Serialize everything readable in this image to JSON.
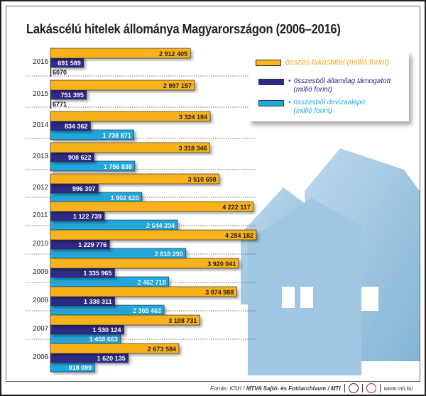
{
  "title": "Lakáscélú hitelek állománya Magyarországon (2006–2016)",
  "chart_data": {
    "type": "bar",
    "orientation": "horizontal",
    "categories": [
      "2016",
      "2015",
      "2014",
      "2013",
      "2012",
      "2011",
      "2010",
      "2009",
      "2008",
      "2007",
      "2006"
    ],
    "series": [
      {
        "name": "összes lakáshitel (millió forint)",
        "color": "#f9b21b",
        "values": [
          2912405,
          2997157,
          3324184,
          3318346,
          3510698,
          4222117,
          4284182,
          3920041,
          3874988,
          3108731,
          2673584
        ],
        "labels": [
          "2 912 405",
          "2 997 157",
          "3 324 184",
          "3 318 346",
          "3 510 698",
          "4 222 117",
          "4 284 182",
          "3 920 041",
          "3 874 988",
          "3 108 731",
          "2 673 584"
        ]
      },
      {
        "name": "összesből államilag támogatott (millió forint)",
        "color": "#2e2a86",
        "values": [
          691589,
          751395,
          834362,
          908622,
          996307,
          1122739,
          1229776,
          1335965,
          1338311,
          1530124,
          1620135
        ],
        "labels": [
          "691 589",
          "751 395",
          "834 362",
          "908 622",
          "996 307",
          "1 122 739",
          "1 229 776",
          "1 335 965",
          "1 338 311",
          "1 530 124",
          "1 620 135"
        ]
      },
      {
        "name": "összesből devizaalapú (millió forint)",
        "color": "#1ea8e0",
        "values": [
          6070,
          6771,
          1738871,
          1756838,
          1902620,
          2644394,
          2818290,
          2462719,
          2365463,
          1458663,
          918099
        ],
        "labels": [
          "6070",
          "6771",
          "1 738 871",
          "1 756 838",
          "1 902 620",
          "2 644 394",
          "2 818 290",
          "2 462 719",
          "2 365 463",
          "1 458 663",
          "918 099"
        ]
      }
    ],
    "grid": false,
    "legend": "top-right"
  },
  "legend": {
    "total": "összes lakáshitel (millió forint)",
    "state_line1": "összesből államilag támogatott",
    "state_line2": "(millió forint)",
    "fx_line1": "összesből devizaalapú",
    "fx_line2": "(millió forint)",
    "bullet": "•"
  },
  "footer": {
    "source_prefix": "Forrás: KSH /",
    "source_main": "MTVA Sajtó- és Fotóarchívum / MTI",
    "website": "www.mti.hu"
  }
}
